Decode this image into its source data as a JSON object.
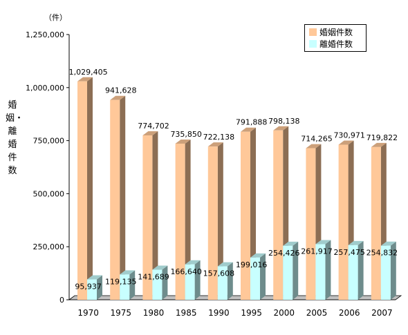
{
  "chart_data": {
    "type": "bar",
    "unit_label": "（件）",
    "ylabel": "婚姻・離婚件数",
    "categories": [
      "1970",
      "1975",
      "1980",
      "1985",
      "1990",
      "1995",
      "2000",
      "2005",
      "2006",
      "2007"
    ],
    "series": [
      {
        "name": "婚姻件数",
        "color": "#ffc899",
        "values": [
          1029405,
          941628,
          774702,
          735850,
          722138,
          791888,
          798138,
          714265,
          730971,
          719822
        ],
        "labels": [
          "1,029,405",
          "941,628",
          "774,702",
          "735,850",
          "722,138",
          "791,888",
          "798,138",
          "714,265",
          "730,971",
          "719,822"
        ]
      },
      {
        "name": "離婚件数",
        "color": "#c8ffff",
        "values": [
          95937,
          119135,
          141689,
          166640,
          157608,
          199016,
          254426,
          261917,
          257475,
          254832
        ],
        "labels": [
          "95,937",
          "119,135",
          "141,689",
          "166,640",
          "157,608",
          "199,016",
          "254,426",
          "261,917",
          "257,475",
          "254,832"
        ]
      }
    ],
    "ylim": [
      0,
      1250000
    ],
    "yticks": [
      0,
      250000,
      500000,
      750000,
      1000000,
      1250000
    ],
    "ytick_labels": [
      "0",
      "250,000",
      "500,000",
      "750,000",
      "1,000,000",
      "1,250,000"
    ],
    "grid": false,
    "legend_position": "top-right",
    "style": "3d-bar"
  }
}
